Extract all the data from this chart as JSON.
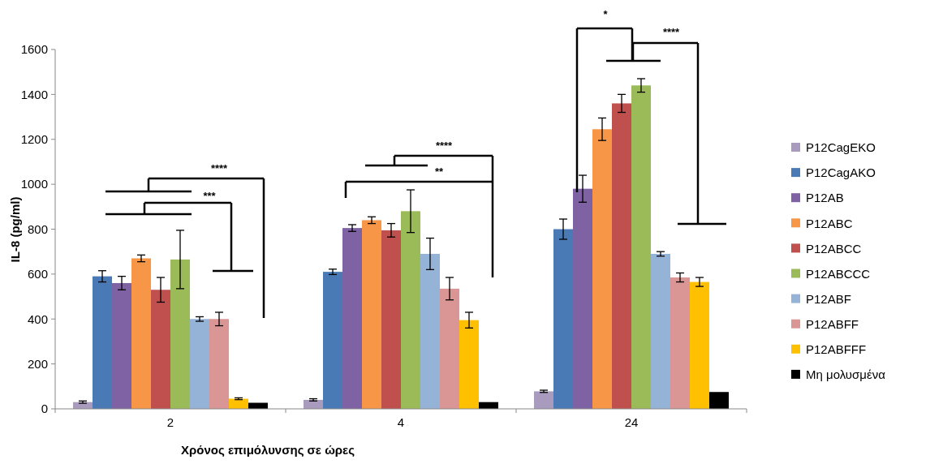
{
  "chart_data": {
    "type": "bar",
    "xlabel": "Χρόνος επιμόλυνσης σε ώρες",
    "ylabel": "IL-8 (pg/ml)",
    "categories": [
      "2",
      "4",
      "24"
    ],
    "ylim": [
      0,
      1600
    ],
    "yticks": [
      0,
      200,
      400,
      600,
      800,
      1000,
      1200,
      1400,
      1600
    ],
    "legend": "right",
    "grid": false,
    "series": [
      {
        "name": "P12CagEKO",
        "color": "#a99bbd",
        "values": [
          30,
          40,
          78
        ],
        "errors": [
          5,
          5,
          5
        ]
      },
      {
        "name": "P12CagAKO",
        "color": "#4a7ab5",
        "values": [
          590,
          610,
          800
        ],
        "errors": [
          25,
          12,
          45
        ]
      },
      {
        "name": "P12AB",
        "color": "#7f62a3",
        "values": [
          560,
          805,
          980
        ],
        "errors": [
          30,
          15,
          60
        ]
      },
      {
        "name": "P12ABC",
        "color": "#f79646",
        "values": [
          670,
          840,
          1245
        ],
        "errors": [
          15,
          15,
          50
        ]
      },
      {
        "name": "P12ABCC",
        "color": "#c0504d",
        "values": [
          530,
          795,
          1360
        ],
        "errors": [
          55,
          30,
          40
        ]
      },
      {
        "name": "P12ABCCC",
        "color": "#9bbb59",
        "values": [
          665,
          880,
          1440
        ],
        "errors": [
          130,
          95,
          30
        ]
      },
      {
        "name": "P12ABF",
        "color": "#95b3d7",
        "values": [
          400,
          690,
          690
        ],
        "errors": [
          10,
          70,
          10
        ]
      },
      {
        "name": "P12ABFF",
        "color": "#d99694",
        "values": [
          400,
          535,
          585
        ],
        "errors": [
          30,
          50,
          20
        ]
      },
      {
        "name": "P12ABFFF",
        "color": "#ffc000",
        "values": [
          45,
          395,
          565
        ],
        "errors": [
          4,
          35,
          20
        ]
      },
      {
        "name": "Μη μολυσμένα",
        "color": "#000000",
        "values": [
          27,
          30,
          75
        ],
        "errors": [
          null,
          null,
          null
        ]
      }
    ],
    "annotations": [
      "****",
      "***",
      "****",
      "**",
      "*",
      "****"
    ]
  }
}
